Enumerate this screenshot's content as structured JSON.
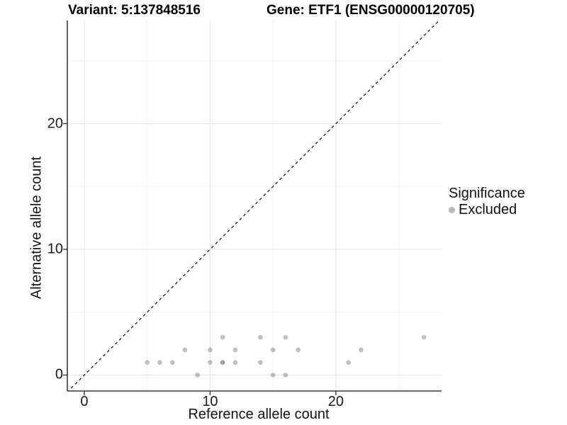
{
  "chart_data": {
    "type": "scatter",
    "title_left": "Variant: 5:137848516",
    "title_right": "Gene: ETF1 (ENSG00000120705)",
    "xlabel": "Reference allele count",
    "ylabel": "Alternative allele count",
    "x_ticks": [
      0,
      10,
      20
    ],
    "y_ticks": [
      0,
      10,
      20
    ],
    "x_minor_gridlines": [
      5,
      15,
      25
    ],
    "y_minor_gridlines": [
      5,
      15,
      25
    ],
    "xlim": [
      -1.35,
      28.4
    ],
    "ylim": [
      -1.27,
      28.2
    ],
    "grid": true,
    "identity_line": {
      "type": "abline y=x",
      "style": "dashed",
      "color": "#1a1a1a"
    },
    "series": [
      {
        "name": "Excluded",
        "points": [
          [
            5,
            1
          ],
          [
            6,
            1
          ],
          [
            7,
            1
          ],
          [
            8,
            2
          ],
          [
            9,
            0
          ],
          [
            10,
            1
          ],
          [
            10,
            2
          ],
          [
            11,
            1
          ],
          [
            11,
            1
          ],
          [
            11,
            3
          ],
          [
            12,
            1
          ],
          [
            12,
            2
          ],
          [
            14,
            1
          ],
          [
            14,
            3
          ],
          [
            15,
            0
          ],
          [
            15,
            2
          ],
          [
            16,
            0
          ],
          [
            16,
            3
          ],
          [
            17,
            2
          ],
          [
            21,
            1
          ],
          [
            22,
            2
          ],
          [
            27,
            3
          ]
        ]
      }
    ],
    "legend": {
      "title": "Significance",
      "position": "right",
      "entries": [
        {
          "label": "Excluded",
          "color": "#b9b9b9"
        }
      ]
    },
    "colors": {
      "point_fill": "#808080",
      "point_opacity": 0.5,
      "major_gridline": "#e4e4e4",
      "minor_gridline": "#f2f2f2",
      "axis_line": "#3a3a3a",
      "tick_mark": "#333333",
      "background": "#ffffff"
    }
  }
}
